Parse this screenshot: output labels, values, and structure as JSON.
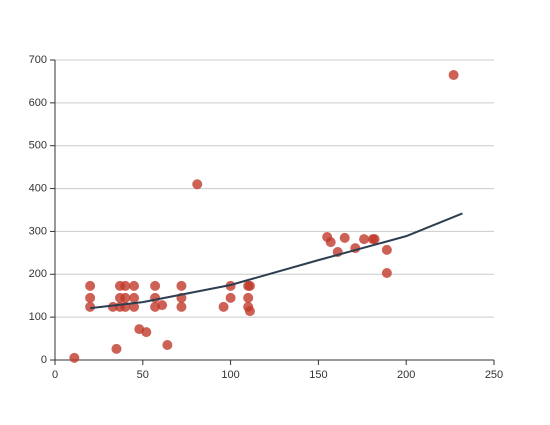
{
  "chart_data": {
    "type": "scatter",
    "xlim": [
      0,
      250
    ],
    "xticks": [
      0,
      50,
      100,
      150,
      200,
      250
    ],
    "ylim": [
      0,
      700
    ],
    "yticks": [
      0,
      100,
      200,
      300,
      400,
      500,
      600,
      700
    ],
    "grid": true,
    "series": [
      {
        "type": "scatter",
        "color": "#c0392b",
        "x": [
          11,
          20,
          20,
          20,
          35,
          33,
          37,
          37,
          37,
          40,
          40,
          40,
          45,
          45,
          45,
          48,
          52,
          57,
          57,
          57,
          61,
          64,
          72,
          72,
          72,
          81,
          96,
          100,
          100,
          110,
          111,
          110,
          110,
          111,
          155,
          157,
          161,
          165,
          171,
          176,
          181,
          182,
          189,
          189,
          227
        ],
        "values": [
          5,
          173,
          145,
          124,
          26,
          124,
          173,
          145,
          124,
          173,
          145,
          124,
          173,
          145,
          124,
          72,
          65,
          173,
          145,
          124,
          128,
          35,
          173,
          145,
          124,
          410,
          124,
          173,
          145,
          173,
          173,
          145,
          124,
          114,
          287,
          275,
          252,
          285,
          261,
          282,
          282,
          282,
          257,
          203,
          665
        ]
      },
      {
        "type": "line",
        "color": "#2c3e50",
        "x": [
          20,
          50,
          100,
          150,
          200,
          232
        ],
        "values": [
          121,
          135,
          175,
          233,
          289,
          342
        ]
      }
    ]
  }
}
